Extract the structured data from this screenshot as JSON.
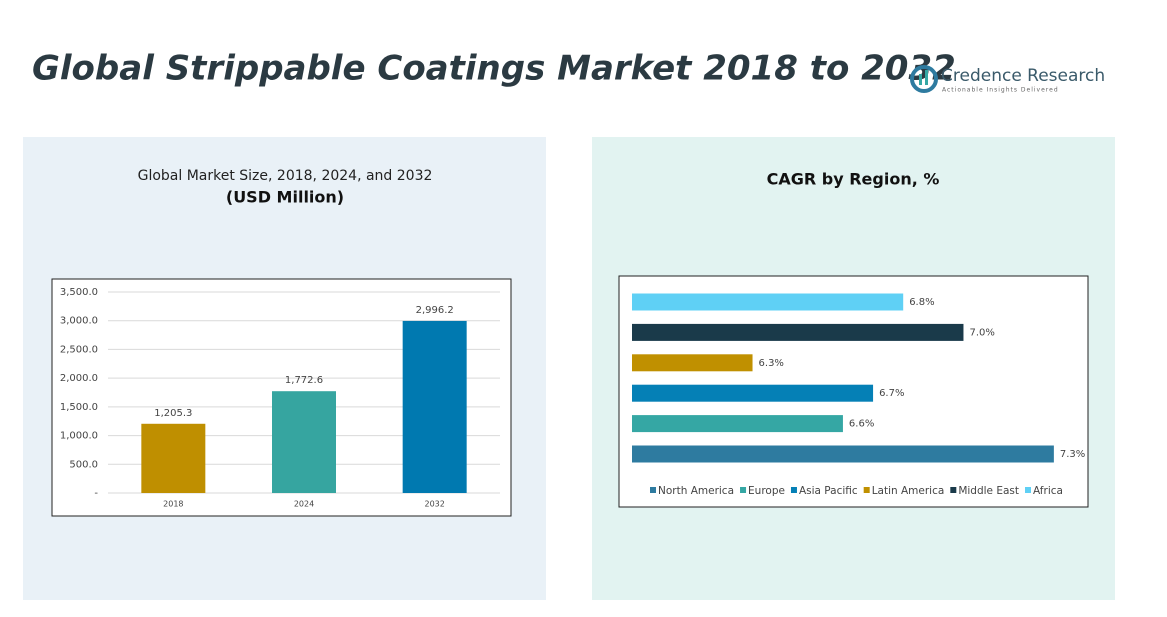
{
  "header": {
    "title": "Global Strippable Coatings Market 2018 to 2032",
    "logo": "Credence Research",
    "tagline": "Actionable Insights Delivered"
  },
  "chart_data": [
    {
      "type": "bar",
      "title": "Global Market Size, 2018, 2024, and 2032",
      "subtitle": "(USD Million)",
      "categories": [
        "2018",
        "2024",
        "2032"
      ],
      "values": [
        1205.3,
        1772.6,
        2996.2
      ],
      "value_labels": [
        "1,205.3",
        "1,772.6",
        "2,996.2"
      ],
      "colors": [
        "#bf8f00",
        "#36a5a0",
        "#0079b0"
      ],
      "ylim": [
        0,
        3500
      ],
      "yticks": [
        {
          "value": 0,
          "label": "-"
        },
        {
          "value": 500,
          "label": "500.0"
        },
        {
          "value": 1000,
          "label": "1,000.0"
        },
        {
          "value": 1500,
          "label": "1,500.0"
        },
        {
          "value": 2000,
          "label": "2,000.0"
        },
        {
          "value": 2500,
          "label": "2,500.0"
        },
        {
          "value": 3000,
          "label": "3,000.0"
        },
        {
          "value": 3500,
          "label": "3,500.0"
        }
      ],
      "grid": true
    },
    {
      "type": "hbar",
      "title": "CAGR by Region, %",
      "xlim": [
        5.9,
        7.4
      ],
      "series": [
        {
          "name": "North America",
          "color": "#2e7ba0",
          "values": [
            7.3
          ],
          "value_labels": [
            "7.3%"
          ]
        },
        {
          "name": "Europe",
          "color": "#35a7a4",
          "values": [
            6.6
          ],
          "value_labels": [
            "6.6%"
          ]
        },
        {
          "name": "Asia Pacific",
          "color": "#0580b6",
          "values": [
            6.7
          ],
          "value_labels": [
            "6.7%"
          ]
        },
        {
          "name": "Latin America",
          "color": "#c09000",
          "values": [
            6.3
          ],
          "value_labels": [
            "6.3%"
          ]
        },
        {
          "name": "Middle East",
          "color": "#1a3a4a",
          "values": [
            7.0
          ],
          "value_labels": [
            "7.0%"
          ]
        },
        {
          "name": "Africa",
          "color": "#5fd0f5",
          "values": [
            6.8
          ],
          "value_labels": [
            "6.8%"
          ]
        }
      ]
    }
  ]
}
